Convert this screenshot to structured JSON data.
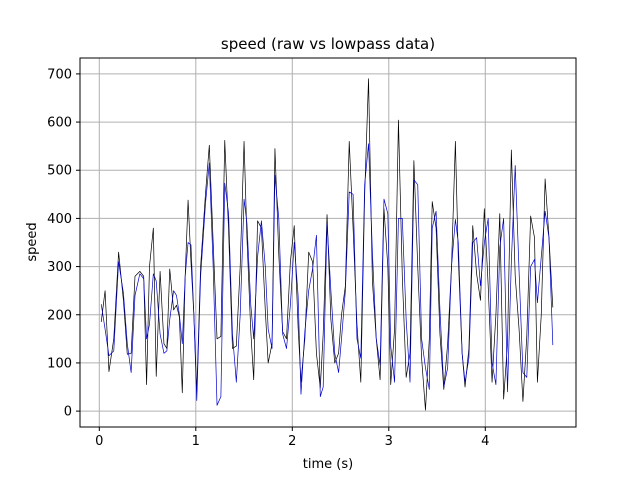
{
  "chart_data": {
    "type": "line",
    "title": "speed (raw vs lowpass data)",
    "xlabel": "time (s)",
    "ylabel": "speed",
    "xlim": [
      -0.2,
      4.94
    ],
    "ylim": [
      -33,
      733
    ],
    "grid": true,
    "x_ticks": [
      0,
      1,
      2,
      3,
      4
    ],
    "x_tick_labels": [
      "0",
      "1",
      "2",
      "3",
      "4"
    ],
    "y_ticks": [
      0,
      100,
      200,
      300,
      400,
      500,
      600,
      700
    ],
    "y_tick_labels": [
      "0",
      "100",
      "200",
      "300",
      "400",
      "500",
      "600",
      "700"
    ],
    "series": [
      {
        "color": "#000000",
        "points": [
          [
            0.02,
            185
          ],
          [
            0.06,
            250
          ],
          [
            0.1,
            82
          ],
          [
            0.15,
            150
          ],
          [
            0.2,
            330
          ],
          [
            0.25,
            230
          ],
          [
            0.29,
            118
          ],
          [
            0.33,
            120
          ],
          [
            0.37,
            280
          ],
          [
            0.42,
            290
          ],
          [
            0.46,
            280
          ],
          [
            0.49,
            55
          ],
          [
            0.52,
            300
          ],
          [
            0.56,
            380
          ],
          [
            0.59,
            72
          ],
          [
            0.63,
            290
          ],
          [
            0.67,
            140
          ],
          [
            0.7,
            130
          ],
          [
            0.73,
            295
          ],
          [
            0.77,
            210
          ],
          [
            0.8,
            220
          ],
          [
            0.83,
            195
          ],
          [
            0.86,
            38
          ],
          [
            0.89,
            280
          ],
          [
            0.92,
            438
          ],
          [
            0.95,
            310
          ],
          [
            0.98,
            200
          ],
          [
            1.01,
            40
          ],
          [
            1.05,
            300
          ],
          [
            1.1,
            450
          ],
          [
            1.14,
            552
          ],
          [
            1.18,
            350
          ],
          [
            1.22,
            150
          ],
          [
            1.26,
            155
          ],
          [
            1.3,
            562
          ],
          [
            1.34,
            375
          ],
          [
            1.38,
            130
          ],
          [
            1.42,
            135
          ],
          [
            1.46,
            300
          ],
          [
            1.5,
            560
          ],
          [
            1.53,
            360
          ],
          [
            1.57,
            165
          ],
          [
            1.6,
            65
          ],
          [
            1.64,
            395
          ],
          [
            1.68,
            380
          ],
          [
            1.72,
            210
          ],
          [
            1.75,
            100
          ],
          [
            1.79,
            140
          ],
          [
            1.82,
            545
          ],
          [
            1.86,
            325
          ],
          [
            1.9,
            165
          ],
          [
            1.94,
            150
          ],
          [
            1.98,
            310
          ],
          [
            2.02,
            385
          ],
          [
            2.06,
            175
          ],
          [
            2.09,
            60
          ],
          [
            2.13,
            150
          ],
          [
            2.17,
            330
          ],
          [
            2.21,
            310
          ],
          [
            2.25,
            120
          ],
          [
            2.29,
            48
          ],
          [
            2.32,
            160
          ],
          [
            2.36,
            408
          ],
          [
            2.4,
            190
          ],
          [
            2.44,
            100
          ],
          [
            2.48,
            120
          ],
          [
            2.51,
            200
          ],
          [
            2.55,
            260
          ],
          [
            2.59,
            560
          ],
          [
            2.63,
            380
          ],
          [
            2.67,
            180
          ],
          [
            2.71,
            60
          ],
          [
            2.75,
            450
          ],
          [
            2.79,
            690
          ],
          [
            2.83,
            270
          ],
          [
            2.87,
            150
          ],
          [
            2.91,
            65
          ],
          [
            2.95,
            420
          ],
          [
            2.99,
            300
          ],
          [
            3.02,
            55
          ],
          [
            3.06,
            170
          ],
          [
            3.1,
            604
          ],
          [
            3.14,
            280
          ],
          [
            3.18,
            70
          ],
          [
            3.22,
            120
          ],
          [
            3.26,
            520
          ],
          [
            3.3,
            300
          ],
          [
            3.34,
            110
          ],
          [
            3.38,
            2
          ],
          [
            3.42,
            150
          ],
          [
            3.45,
            435
          ],
          [
            3.49,
            380
          ],
          [
            3.53,
            160
          ],
          [
            3.57,
            45
          ],
          [
            3.61,
            140
          ],
          [
            3.65,
            300
          ],
          [
            3.69,
            560
          ],
          [
            3.72,
            320
          ],
          [
            3.76,
            120
          ],
          [
            3.79,
            50
          ],
          [
            3.83,
            130
          ],
          [
            3.87,
            385
          ],
          [
            3.91,
            285
          ],
          [
            3.95,
            230
          ],
          [
            3.99,
            420
          ],
          [
            4.03,
            260
          ],
          [
            4.07,
            60
          ],
          [
            4.11,
            200
          ],
          [
            4.15,
            410
          ],
          [
            4.19,
            25
          ],
          [
            4.23,
            140
          ],
          [
            4.27,
            542
          ],
          [
            4.31,
            280
          ],
          [
            4.35,
            170
          ],
          [
            4.39,
            20
          ],
          [
            4.43,
            155
          ],
          [
            4.47,
            405
          ],
          [
            4.51,
            360
          ],
          [
            4.54,
            60
          ],
          [
            4.58,
            200
          ],
          [
            4.62,
            482
          ],
          [
            4.66,
            360
          ],
          [
            4.7,
            215
          ]
        ]
      },
      {
        "color": "#0000cc",
        "points": [
          [
            0.02,
            222
          ],
          [
            0.06,
            170
          ],
          [
            0.1,
            115
          ],
          [
            0.15,
            125
          ],
          [
            0.2,
            310
          ],
          [
            0.25,
            245
          ],
          [
            0.29,
            140
          ],
          [
            0.33,
            80
          ],
          [
            0.37,
            240
          ],
          [
            0.42,
            285
          ],
          [
            0.46,
            275
          ],
          [
            0.49,
            150
          ],
          [
            0.52,
            180
          ],
          [
            0.56,
            285
          ],
          [
            0.59,
            270
          ],
          [
            0.63,
            160
          ],
          [
            0.67,
            120
          ],
          [
            0.7,
            125
          ],
          [
            0.73,
            190
          ],
          [
            0.77,
            250
          ],
          [
            0.8,
            240
          ],
          [
            0.83,
            200
          ],
          [
            0.86,
            140
          ],
          [
            0.89,
            280
          ],
          [
            0.92,
            350
          ],
          [
            0.95,
            345
          ],
          [
            0.98,
            200
          ],
          [
            1.01,
            22
          ],
          [
            1.05,
            280
          ],
          [
            1.1,
            430
          ],
          [
            1.14,
            515
          ],
          [
            1.18,
            300
          ],
          [
            1.22,
            12
          ],
          [
            1.26,
            30
          ],
          [
            1.3,
            473
          ],
          [
            1.34,
            410
          ],
          [
            1.38,
            160
          ],
          [
            1.42,
            60
          ],
          [
            1.46,
            200
          ],
          [
            1.5,
            440
          ],
          [
            1.53,
            390
          ],
          [
            1.57,
            220
          ],
          [
            1.6,
            150
          ],
          [
            1.64,
            320
          ],
          [
            1.68,
            395
          ],
          [
            1.72,
            300
          ],
          [
            1.75,
            170
          ],
          [
            1.79,
            130
          ],
          [
            1.82,
            490
          ],
          [
            1.86,
            400
          ],
          [
            1.9,
            160
          ],
          [
            1.94,
            130
          ],
          [
            1.98,
            220
          ],
          [
            2.02,
            350
          ],
          [
            2.06,
            240
          ],
          [
            2.09,
            35
          ],
          [
            2.13,
            165
          ],
          [
            2.17,
            250
          ],
          [
            2.21,
            295
          ],
          [
            2.25,
            365
          ],
          [
            2.29,
            30
          ],
          [
            2.32,
            50
          ],
          [
            2.36,
            390
          ],
          [
            2.4,
            250
          ],
          [
            2.44,
            120
          ],
          [
            2.48,
            80
          ],
          [
            2.51,
            150
          ],
          [
            2.55,
            250
          ],
          [
            2.59,
            455
          ],
          [
            2.63,
            450
          ],
          [
            2.67,
            150
          ],
          [
            2.71,
            110
          ],
          [
            2.75,
            470
          ],
          [
            2.79,
            555
          ],
          [
            2.83,
            330
          ],
          [
            2.87,
            150
          ],
          [
            2.91,
            95
          ],
          [
            2.95,
            440
          ],
          [
            2.99,
            410
          ],
          [
            3.02,
            135
          ],
          [
            3.06,
            60
          ],
          [
            3.1,
            400
          ],
          [
            3.14,
            400
          ],
          [
            3.18,
            190
          ],
          [
            3.22,
            60
          ],
          [
            3.26,
            480
          ],
          [
            3.3,
            470
          ],
          [
            3.34,
            150
          ],
          [
            3.38,
            90
          ],
          [
            3.42,
            45
          ],
          [
            3.45,
            380
          ],
          [
            3.49,
            415
          ],
          [
            3.53,
            210
          ],
          [
            3.57,
            50
          ],
          [
            3.61,
            90
          ],
          [
            3.65,
            300
          ],
          [
            3.69,
            398
          ],
          [
            3.72,
            350
          ],
          [
            3.76,
            120
          ],
          [
            3.79,
            60
          ],
          [
            3.83,
            110
          ],
          [
            3.87,
            350
          ],
          [
            3.91,
            360
          ],
          [
            3.95,
            260
          ],
          [
            3.99,
            350
          ],
          [
            4.03,
            400
          ],
          [
            4.07,
            100
          ],
          [
            4.11,
            55
          ],
          [
            4.15,
            340
          ],
          [
            4.19,
            400
          ],
          [
            4.23,
            40
          ],
          [
            4.27,
            310
          ],
          [
            4.31,
            510
          ],
          [
            4.35,
            290
          ],
          [
            4.39,
            80
          ],
          [
            4.43,
            70
          ],
          [
            4.47,
            300
          ],
          [
            4.51,
            315
          ],
          [
            4.54,
            225
          ],
          [
            4.58,
            320
          ],
          [
            4.62,
            415
          ],
          [
            4.66,
            360
          ],
          [
            4.7,
            137
          ]
        ]
      }
    ]
  }
}
